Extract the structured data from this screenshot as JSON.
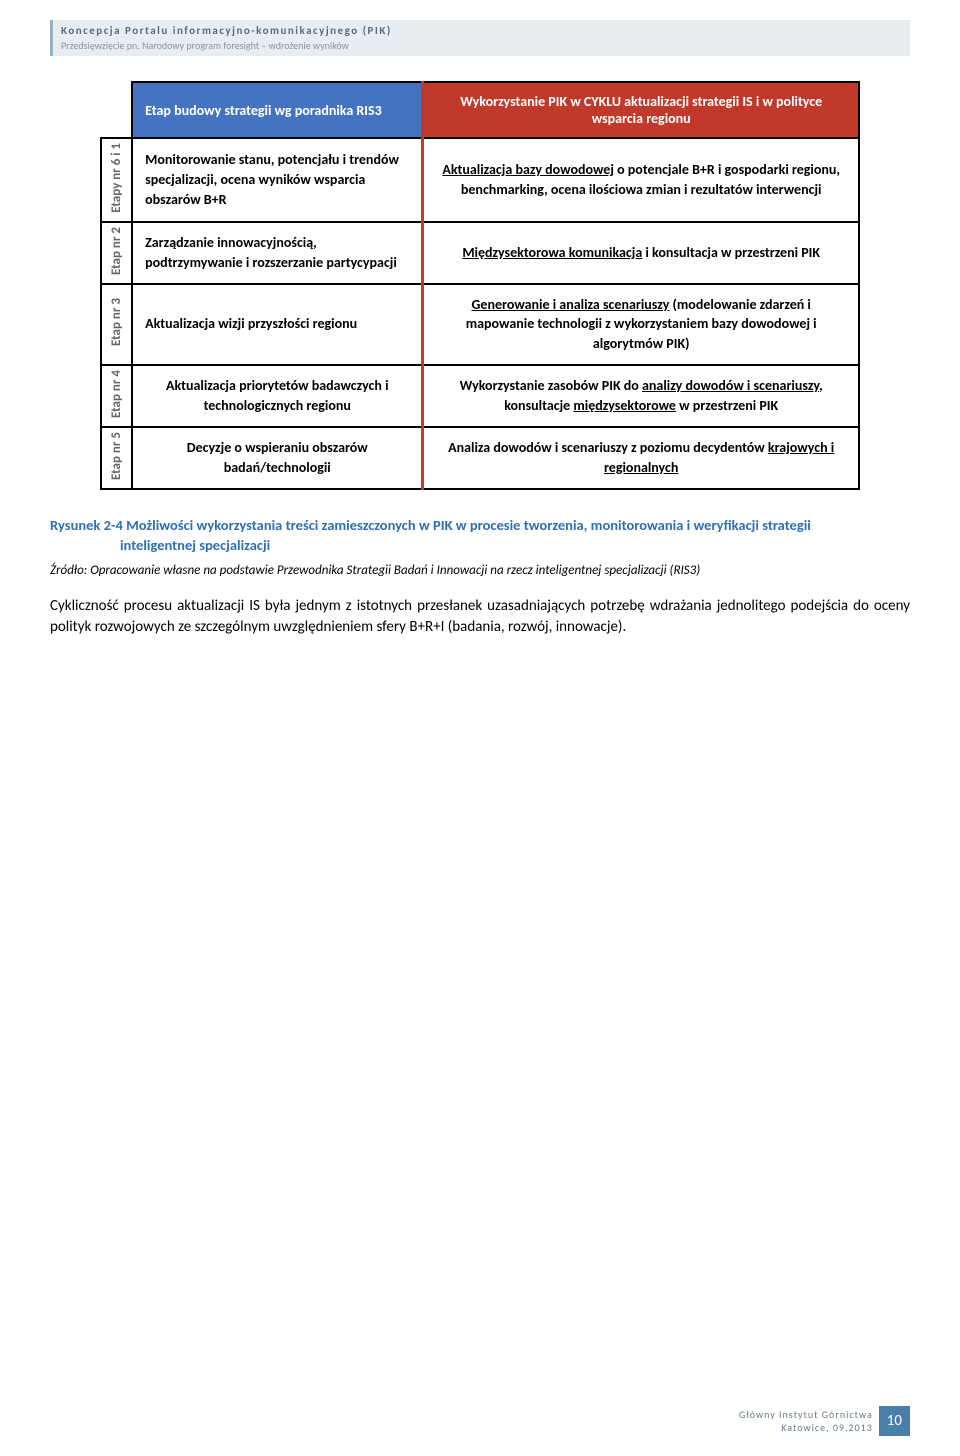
{
  "header": {
    "title": "Koncepcja Portalu informacyjno-komunikacyjnego (PIK)",
    "subtitle": "Przedsięwzięcie pn. Narodowy program foresight – wdrożenie wyników"
  },
  "diagram": {
    "head_left": "Etap budowy strategii wg poradnika RIS3",
    "head_right": "Wykorzystanie PIK w CYKLU aktualizacji strategii IS i w polityce wsparcia regionu",
    "rows": [
      {
        "etap": "Etapy nr 6 i 1",
        "left": "Monitorowanie stanu, potencjału i trendów specjalizacji, ocena wyników wsparcia obszarów B+R",
        "right_u": "Aktualizacja bazy dowodowej",
        "right_rest": " o potencjale B+R i gospodarki regionu, benchmarking, ocena ilościowa zmian i rezultatów interwencji"
      },
      {
        "etap": "Etap nr 2",
        "left": "Zarządzanie innowacyjnością, podtrzymywanie i rozszerzanie partycypacji",
        "right_u": "Międzysektorowa komunikacja",
        "right_rest": " i konsultacja w przestrzeni PIK"
      },
      {
        "etap": "Etap nr 3",
        "left": "Aktualizacja wizji przyszłości regionu",
        "right_u": "Generowanie i analiza scenariuszy",
        "right_rest": " (modelowanie zdarzeń i mapowanie technologii z wykorzystaniem bazy dowodowej i algorytmów PIK)"
      },
      {
        "etap": "Etap nr 4",
        "left": "Aktualizacja priorytetów badawczych i technologicznych regionu",
        "right_pre": "Wykorzystanie zasobów PIK do ",
        "right_u": "analizy dowodów i scenariuszy",
        "right_mid": ", konsultacje ",
        "right_u2": "międzysektorowe",
        "right_rest": " w przestrzeni PIK"
      },
      {
        "etap": "Etap nr 5",
        "left": "Decyzje o wspieraniu obszarów badań/technologii",
        "right_pre": "Analiza dowodów i scenariuszy z poziomu decydentów ",
        "right_u": "krajowych i regionalnych",
        "right_rest": ""
      }
    ]
  },
  "caption": {
    "prefix": "Rysunek 2-4 ",
    "text": "Możliwości wykorzystania treści zamieszczonych w PIK w procesie tworzenia, monitorowania i weryfikacji strategii",
    "line2": "inteligentnej specjalizacji"
  },
  "source": "Źródło: Opracowanie własne na podstawie Przewodnika Strategii Badań i Innowacji na rzecz inteligentnej specjalizacji (RIS3)",
  "body": "Cykliczność procesu aktualizacji IS była jednym z istotnych przesłanek uzasadniających potrzebę wdrażania jednolitego podejścia do oceny polityk rozwojowych ze szczególnym uwzględnieniem sfery B+R+I (badania, rozwój, innowacje).",
  "footer": {
    "line1": "Główny Instytut Górnictwa",
    "line2": "Katowice, 09.2013",
    "page": "10"
  }
}
